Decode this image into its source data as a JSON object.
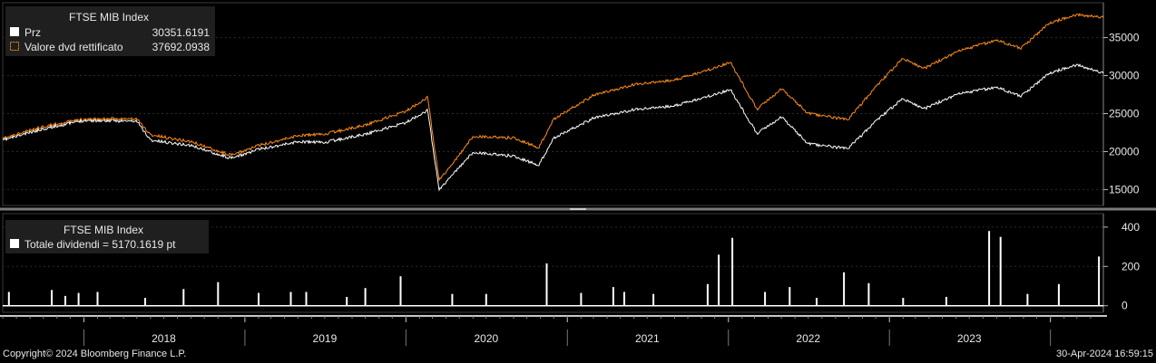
{
  "chart_data": [
    {
      "type": "line",
      "legend": {
        "title": "FTSE MIB Index",
        "entries": [
          {
            "label": "Prz",
            "value": "30351.6191",
            "color": "#ffffff"
          },
          {
            "label": "Valore dvd rettificato",
            "value": "37692.0938",
            "color": "#ff8c1a"
          }
        ],
        "placement": "top-left"
      },
      "ylim": [
        13500,
        39000
      ],
      "yticks": [
        15000,
        20000,
        25000,
        30000,
        35000
      ],
      "x_range": [
        "2017-07-01",
        "2024-04-30"
      ],
      "series": [
        {
          "name": "Prz",
          "color": "#ffffff",
          "x": [
            "2017-07-01",
            "2017-10-01",
            "2018-01-01",
            "2018-05-01",
            "2018-06-01",
            "2018-09-01",
            "2018-12-01",
            "2019-02-01",
            "2019-05-01",
            "2019-07-01",
            "2019-10-01",
            "2020-01-01",
            "2020-02-19",
            "2020-03-16",
            "2020-04-15",
            "2020-06-01",
            "2020-09-01",
            "2020-10-28",
            "2020-12-01",
            "2021-03-01",
            "2021-06-01",
            "2021-09-01",
            "2021-12-01",
            "2022-01-05",
            "2022-03-07",
            "2022-05-01",
            "2022-07-01",
            "2022-09-29",
            "2022-12-01",
            "2023-02-01",
            "2023-03-20",
            "2023-06-01",
            "2023-09-01",
            "2023-10-26",
            "2024-01-01",
            "2024-03-01",
            "2024-04-30"
          ],
          "y": [
            21500,
            23000,
            24100,
            24000,
            21500,
            20800,
            19100,
            20300,
            21300,
            21200,
            22300,
            23800,
            25500,
            15000,
            16900,
            19900,
            19400,
            18200,
            21800,
            24400,
            25500,
            26000,
            27500,
            28200,
            22400,
            24600,
            21000,
            20400,
            24000,
            27000,
            25600,
            27500,
            28500,
            27300,
            30400,
            31400,
            30351
          ]
        },
        {
          "name": "Valore dvd rettificato",
          "color": "#ff8c1a",
          "x": [
            "2017-07-01",
            "2017-10-01",
            "2018-01-01",
            "2018-05-01",
            "2018-06-01",
            "2018-09-01",
            "2018-12-01",
            "2019-02-01",
            "2019-05-01",
            "2019-07-01",
            "2019-10-01",
            "2020-01-01",
            "2020-02-19",
            "2020-03-16",
            "2020-04-15",
            "2020-06-01",
            "2020-09-01",
            "2020-10-28",
            "2020-12-01",
            "2021-03-01",
            "2021-06-01",
            "2021-09-01",
            "2021-12-01",
            "2022-01-05",
            "2022-03-07",
            "2022-05-01",
            "2022-07-01",
            "2022-09-29",
            "2022-12-01",
            "2023-02-01",
            "2023-03-20",
            "2023-06-01",
            "2023-09-01",
            "2023-10-26",
            "2024-01-01",
            "2024-03-01",
            "2024-04-30"
          ],
          "y": [
            21700,
            23300,
            24300,
            24300,
            22200,
            21300,
            19500,
            20800,
            22100,
            22300,
            23500,
            25300,
            27200,
            16300,
            18300,
            22000,
            21800,
            20500,
            24300,
            27400,
            28800,
            29400,
            31000,
            31800,
            25600,
            28300,
            25000,
            24200,
            28500,
            32300,
            30900,
            33100,
            34700,
            33600,
            37000,
            38000,
            37692
          ]
        }
      ]
    },
    {
      "type": "bar",
      "legend": {
        "title": "FTSE MIB Index",
        "entries": [
          {
            "label": "Totale dividendi = 5170.1619 pt",
            "color": "#ffffff"
          }
        ],
        "placement": "top-left"
      },
      "ylim": [
        -15,
        450
      ],
      "yticks": [
        0,
        200,
        400
      ],
      "x": [
        "2017-07-15",
        "2017-10-20",
        "2017-11-20",
        "2017-12-20",
        "2018-02-01",
        "2018-05-20",
        "2018-08-15",
        "2018-11-01",
        "2019-02-01",
        "2019-04-15",
        "2019-05-20",
        "2019-08-20",
        "2019-10-01",
        "2019-12-20",
        "2020-04-15",
        "2020-07-01",
        "2020-11-15",
        "2021-02-01",
        "2021-04-15",
        "2021-05-10",
        "2021-07-15",
        "2021-11-15",
        "2021-12-10",
        "2022-01-10",
        "2022-03-25",
        "2022-05-20",
        "2022-07-20",
        "2022-09-20",
        "2022-11-15",
        "2023-02-01",
        "2023-05-10",
        "2023-08-15",
        "2023-09-10",
        "2023-11-10",
        "2024-01-20",
        "2024-04-20"
      ],
      "values": [
        70,
        80,
        50,
        65,
        70,
        40,
        85,
        120,
        65,
        70,
        70,
        45,
        90,
        150,
        60,
        60,
        215,
        65,
        95,
        70,
        60,
        110,
        260,
        345,
        70,
        95,
        40,
        170,
        115,
        40,
        45,
        380,
        350,
        60,
        110,
        250
      ]
    }
  ],
  "x_axis": {
    "year_labels": [
      "2018",
      "2019",
      "2020",
      "2021",
      "2022",
      "2023"
    ]
  },
  "footer": {
    "copyright": "Copyright© 2024 Bloomberg Finance L.P.",
    "timestamp": "30-Apr-2024 16:59:15"
  }
}
